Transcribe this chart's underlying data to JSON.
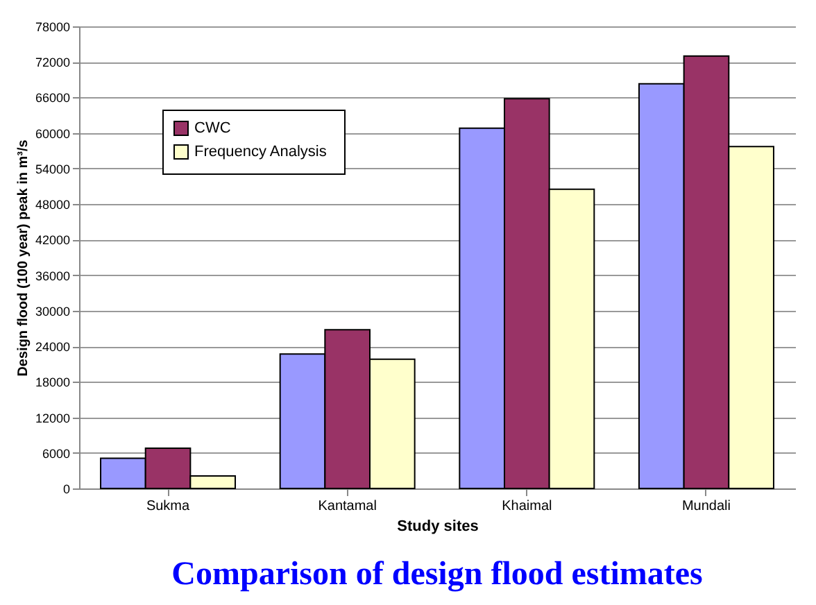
{
  "chart_data": {
    "type": "bar",
    "title": "Comparison of design flood estimates",
    "xlabel": "Study sites",
    "ylabel": "Design flood (100 year) peak in m³/s",
    "categories": [
      "Sukma",
      "Kantamal",
      "Khaimal",
      "Mundali"
    ],
    "series": [
      {
        "color": "#9999ff",
        "values": [
          5100,
          22700,
          60800,
          68300
        ]
      },
      {
        "name": "CWC",
        "color": "#993366",
        "values": [
          6800,
          26800,
          65800,
          73000
        ]
      },
      {
        "name": "Frequency  Analysis",
        "color": "#ffffcc",
        "values": [
          2100,
          21800,
          50500,
          57700
        ]
      }
    ],
    "ylim": [
      0,
      78000
    ],
    "yticks": [
      0,
      6000,
      12000,
      18000,
      24000,
      30000,
      36000,
      42000,
      48000,
      54000,
      60000,
      66000,
      72000,
      78000
    ],
    "grid": "y",
    "legend": "top left"
  }
}
